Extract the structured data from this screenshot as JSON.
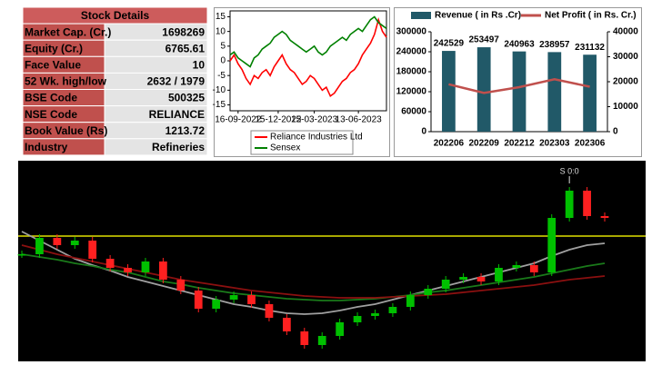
{
  "stock_details": {
    "title": "Stock Details",
    "rows": [
      [
        "Market Cap. (Cr.)",
        "1698269"
      ],
      [
        "Equity (Cr.)",
        "6765.61"
      ],
      [
        "Face Value",
        "10"
      ],
      [
        "52 Wk. high/low",
        "2632 / 1979"
      ],
      [
        "BSE Code",
        "500325"
      ],
      [
        "NSE Code",
        "RELIANCE"
      ],
      [
        "Book Value (Rs)",
        "1213.72"
      ],
      [
        "Industry",
        "Refineries"
      ]
    ]
  },
  "chart_data": [
    {
      "type": "line",
      "categories": [
        null,
        null,
        "16-09-2022",
        null,
        null,
        null,
        null,
        null,
        null,
        null,
        null,
        null,
        "15-12-2022",
        null,
        null,
        null,
        null,
        null,
        null,
        null,
        null,
        "15-03-2023",
        null,
        null,
        null,
        null,
        null,
        null,
        null,
        null,
        null,
        null,
        "13-06-2023",
        null,
        null,
        null,
        null,
        null,
        null,
        null
      ],
      "series": [
        {
          "name": "Reliance Industries Ltd",
          "color": "#ff0000",
          "values": [
            0,
            2,
            -1,
            -3,
            -6,
            -8,
            -5,
            -6,
            -4,
            -3,
            -5,
            -2,
            0,
            2,
            -1,
            -3,
            -4,
            -6,
            -8,
            -7,
            -5,
            -6,
            -8,
            -10,
            -9,
            -12,
            -11,
            -9,
            -7,
            -6,
            -4,
            -3,
            -1,
            2,
            4,
            6,
            9,
            14,
            10,
            8
          ]
        },
        {
          "name": "Sensex",
          "color": "#008000",
          "values": [
            2,
            3,
            1,
            0,
            -1,
            -2,
            1,
            2,
            4,
            5,
            6,
            8,
            9,
            10,
            9,
            7,
            6,
            5,
            4,
            3,
            4,
            5,
            3,
            2,
            3,
            5,
            6,
            7,
            8,
            7,
            9,
            10,
            11,
            10,
            12,
            14,
            15,
            13,
            12,
            11
          ]
        }
      ],
      "ylim": [
        -17,
        17
      ],
      "yticks": [
        -15,
        -10,
        -5,
        0,
        5,
        10,
        15
      ],
      "legend": "bottom"
    },
    {
      "type": "bar_line",
      "categories": [
        "202206",
        "202209",
        "202212",
        "202303",
        "202306"
      ],
      "series": [
        {
          "name": "Revenue ( in Rs .Cr)",
          "color": "#215968",
          "values": [
            242529,
            253497,
            240963,
            238957,
            231132
          ]
        },
        {
          "name": "Net Profit ( in Rs. Cr.)",
          "color": "#c0504d",
          "values": [
            19000,
            15500,
            17800,
            21000,
            18000
          ],
          "axis": "y2"
        }
      ],
      "ylim": [
        0,
        300000
      ],
      "yticks": [
        0,
        60000,
        120000,
        180000,
        240000,
        300000
      ],
      "y2lim": [
        0,
        40000
      ],
      "y2ticks": [
        0,
        10000,
        20000,
        30000,
        40000
      ],
      "legend": "top"
    },
    {
      "type": "candlestick",
      "values": [
        118,
        136,
        128,
        133,
        113,
        103,
        98,
        110,
        90,
        78,
        58,
        68,
        73,
        63,
        48,
        33,
        18,
        28,
        43,
        50,
        53,
        60,
        73,
        80,
        90,
        93,
        88,
        103,
        106,
        98,
        158,
        188,
        160,
        158
      ],
      "up_color": "#00c000",
      "down_color": "#ff2020",
      "moving_averages": [
        {
          "color": "#a0a0a0",
          "values": [
            143,
            133,
            123,
            113,
            106,
            100,
            93,
            88,
            83,
            78,
            73,
            68,
            63,
            60,
            56,
            53,
            52,
            53,
            56,
            60,
            63,
            68,
            73,
            78,
            83,
            88,
            93,
            98,
            103,
            108,
            116,
            123,
            128,
            130
          ]
        },
        {
          "color": "#1a7a1a",
          "values": [
            118,
            115,
            112,
            108,
            105,
            101,
            98,
            93,
            88,
            85,
            81,
            78,
            75,
            73,
            71,
            69,
            68,
            67,
            67,
            68,
            69,
            71,
            73,
            76,
            78,
            81,
            84,
            87,
            90,
            93,
            97,
            101,
            105,
            108
          ]
        },
        {
          "color": "#8b1010",
          "values": [
            128,
            123,
            118,
            114,
            110,
            106,
            102,
            98,
            94,
            90,
            87,
            84,
            81,
            78,
            76,
            74,
            72,
            71,
            70,
            70,
            70,
            71,
            72,
            73,
            74,
            76,
            78,
            80,
            82,
            84,
            87,
            90,
            92,
            94
          ]
        }
      ],
      "reference_line": {
        "value": 138,
        "color": "#e0e000"
      },
      "annotation": "S 0:0",
      "ylim": [
        0,
        218
      ]
    }
  ]
}
